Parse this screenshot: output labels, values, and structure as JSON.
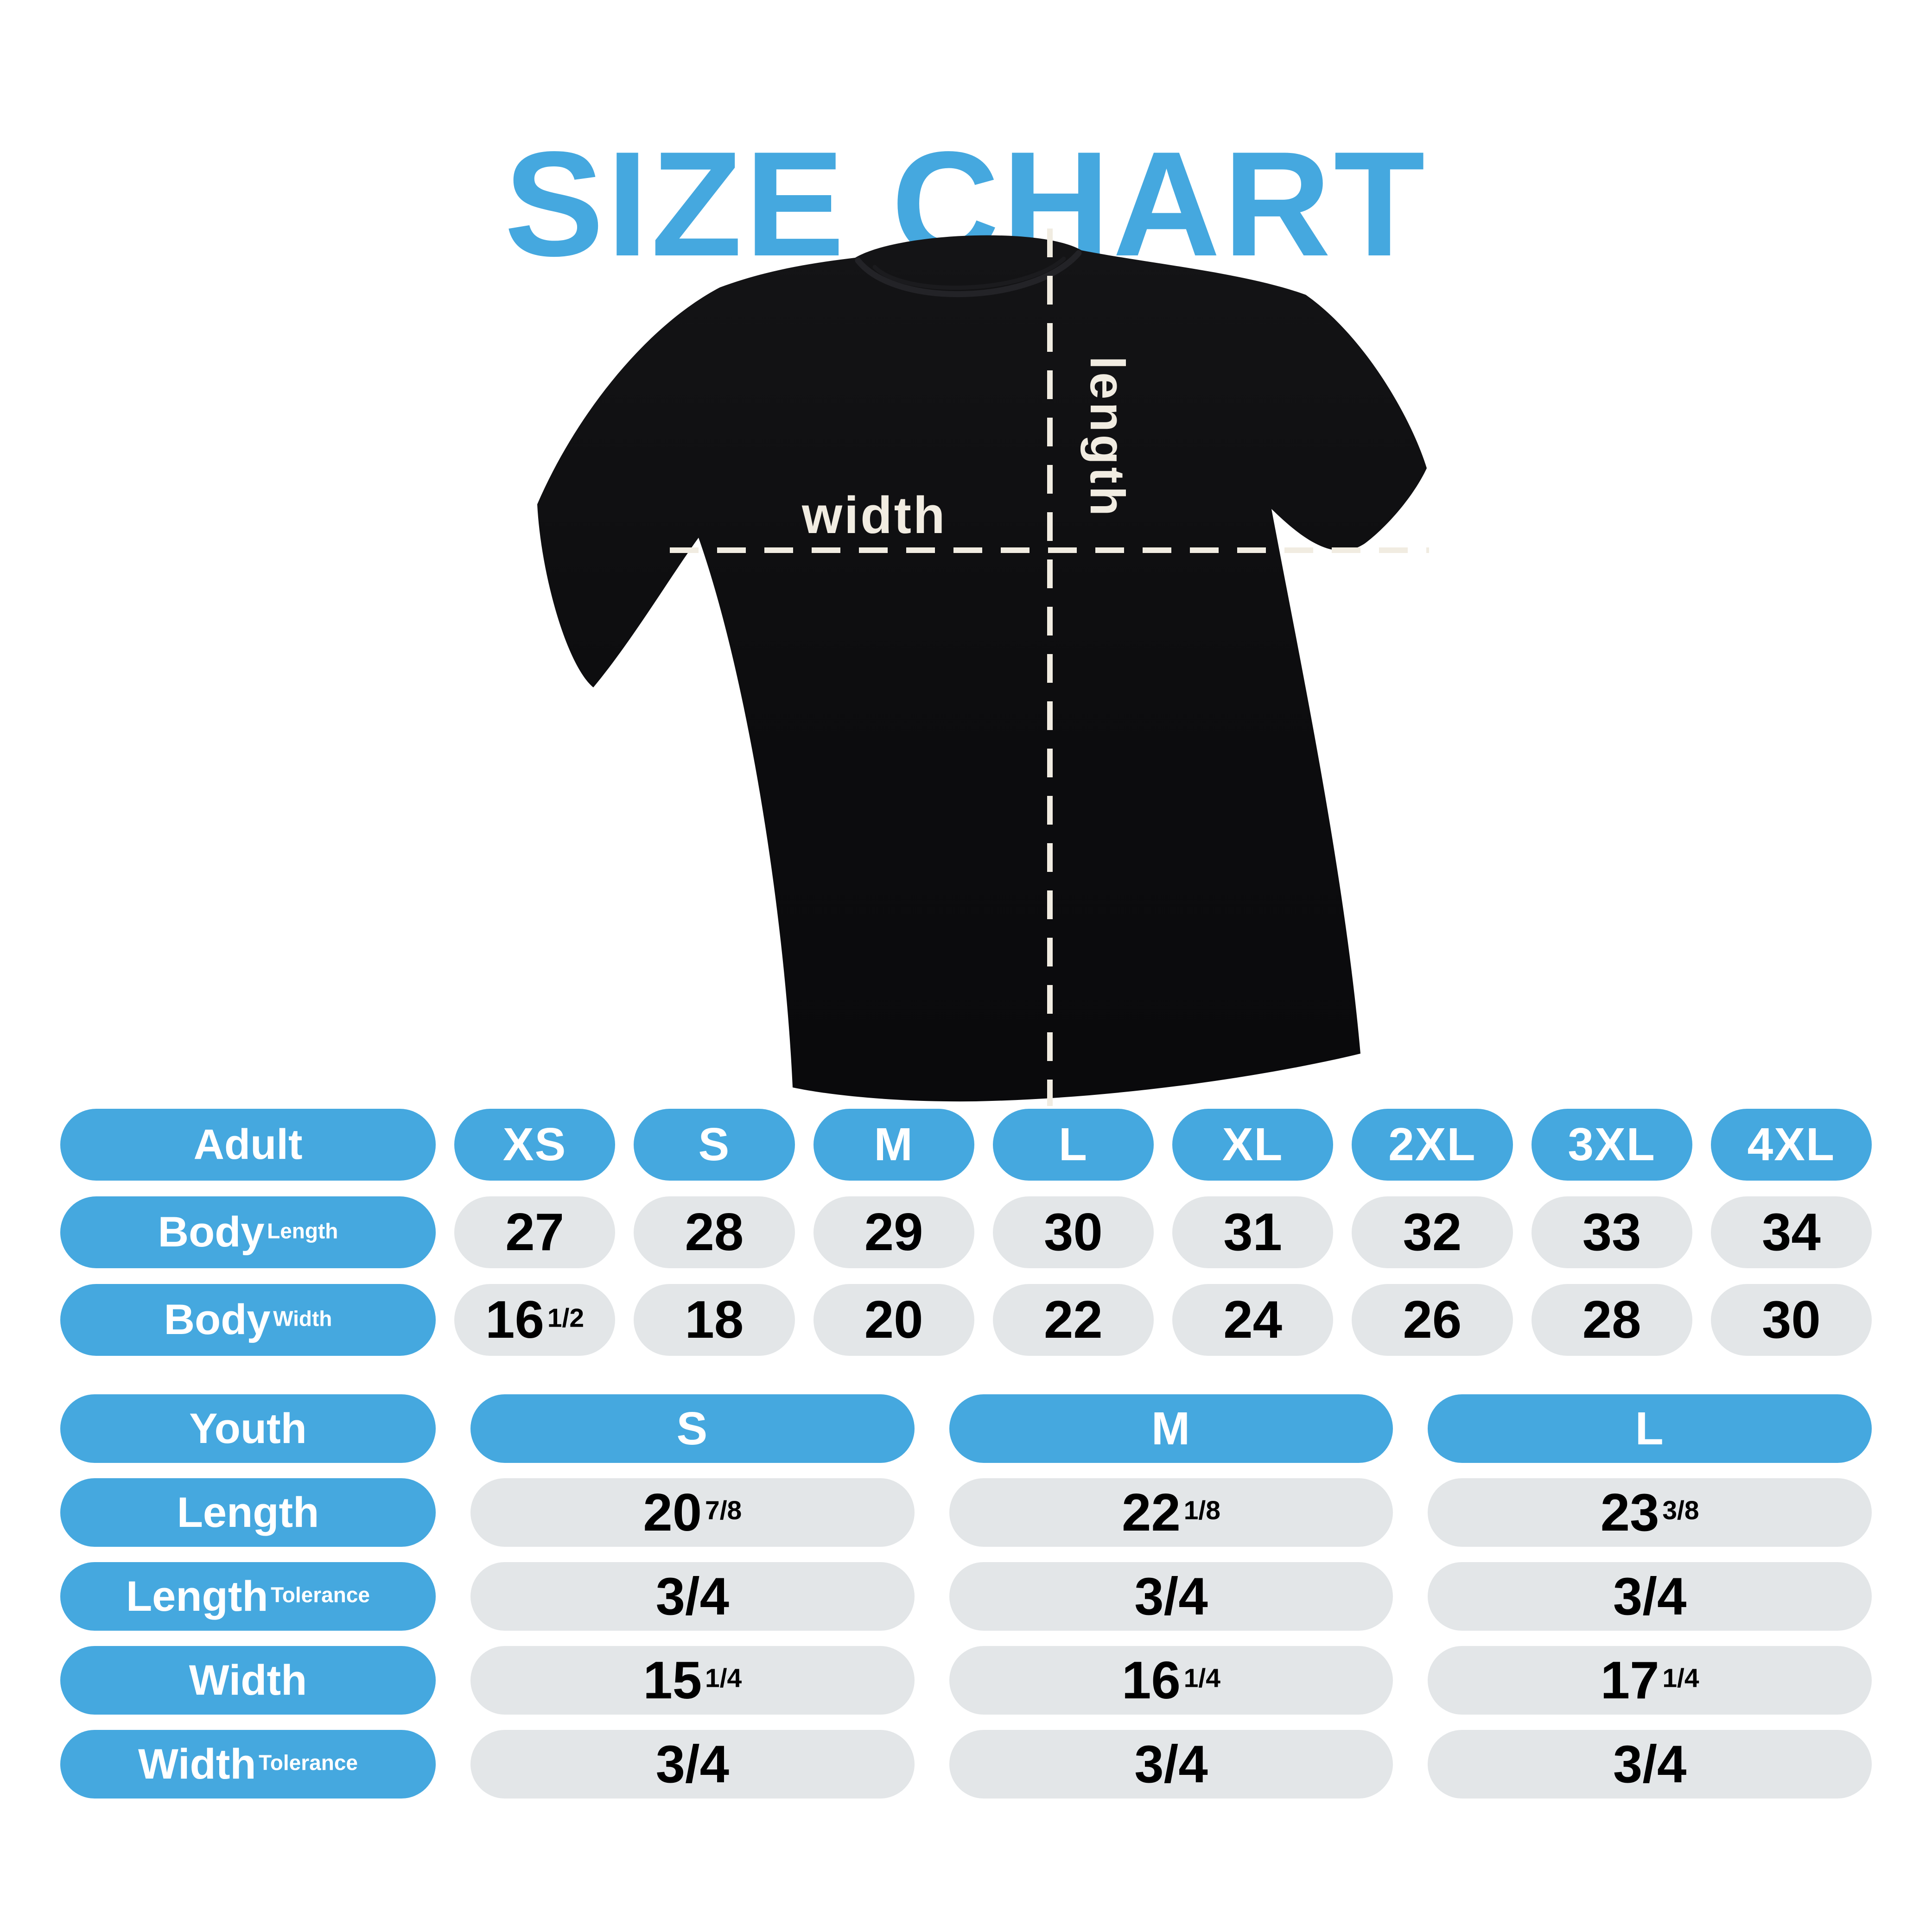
{
  "title": "SIZE CHART",
  "shirt_diagram": {
    "width_label": "width",
    "length_label": "length"
  },
  "adult_table": {
    "header_label": "Adult",
    "sizes": [
      "XS",
      "S",
      "M",
      "L",
      "XL",
      "2XL",
      "3XL",
      "4XL"
    ],
    "rows": [
      {
        "label": "Body Length",
        "values": [
          "27",
          "28",
          "29",
          "30",
          "31",
          "32",
          "33",
          "34"
        ]
      },
      {
        "label": "Body Width",
        "values": [
          "16 1/2",
          "18",
          "20",
          "22",
          "24",
          "26",
          "28",
          "30"
        ]
      }
    ]
  },
  "youth_table": {
    "header_label": "Youth",
    "sizes": [
      "S",
      "M",
      "L"
    ],
    "rows": [
      {
        "label": "Length",
        "values": [
          "20 7/8",
          "22 1/8",
          "23 3/8"
        ]
      },
      {
        "label": "Length Tolerance",
        "values": [
          "3/4",
          "3/4",
          "3/4"
        ]
      },
      {
        "label": "Width",
        "values": [
          "15 1/4",
          "16 1/4",
          "17 1/4"
        ]
      },
      {
        "label": "Width Tolerance",
        "values": [
          "3/4",
          "3/4",
          "3/4"
        ]
      }
    ]
  },
  "colors": {
    "accent_blue": "#45a8df",
    "cell_gray": "#e3e6e8",
    "dash_cream": "#f1ece1",
    "shirt_black": "#0c0c0e",
    "label_text": "#ffffff",
    "value_text": "#000000"
  }
}
